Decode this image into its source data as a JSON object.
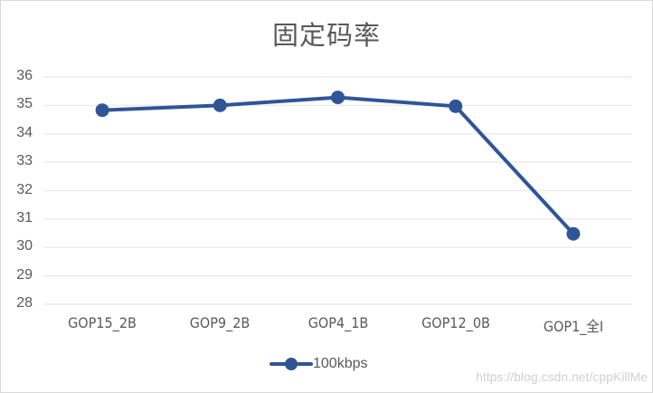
{
  "chart_data": {
    "type": "line",
    "title": "固定码率",
    "xlabel": "",
    "ylabel": "",
    "categories": [
      "GOP15_2B",
      "GOP9_2B",
      "GOP4_1B",
      "GOP12_0B",
      "GOP1_全I"
    ],
    "series": [
      {
        "name": "100kbps",
        "color": "#2F5597",
        "values": [
          34.83,
          35.0,
          35.28,
          34.97,
          30.48
        ]
      }
    ],
    "ylim": [
      28,
      36
    ],
    "yticks": [
      36,
      35,
      34,
      33,
      32,
      31,
      30,
      29,
      28
    ],
    "grid": true,
    "legend_position": "bottom"
  },
  "watermark": "https://blog.csdn.net/cppKillMe"
}
